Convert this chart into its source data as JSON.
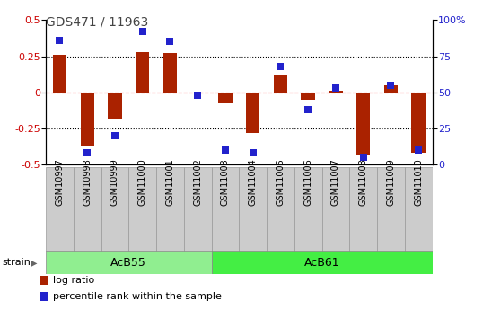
{
  "title": "GDS471 / 11963",
  "samples": [
    "GSM10997",
    "GSM10998",
    "GSM10999",
    "GSM11000",
    "GSM11001",
    "GSM11002",
    "GSM11003",
    "GSM11004",
    "GSM11005",
    "GSM11006",
    "GSM11007",
    "GSM11008",
    "GSM11009",
    "GSM11010"
  ],
  "log_ratio": [
    0.26,
    -0.37,
    -0.18,
    0.28,
    0.27,
    0.0,
    -0.08,
    -0.28,
    0.12,
    -0.05,
    0.01,
    -0.44,
    0.05,
    -0.42
  ],
  "percentile": [
    86,
    8,
    20,
    92,
    85,
    48,
    10,
    8,
    68,
    38,
    53,
    5,
    55,
    10
  ],
  "groups": [
    {
      "label": "AcB55",
      "start": 0,
      "end": 5,
      "color": "#90ee90"
    },
    {
      "label": "AcB61",
      "start": 6,
      "end": 13,
      "color": "#44ee44"
    }
  ],
  "ylim_left": [
    -0.5,
    0.5
  ],
  "ylim_right": [
    0,
    100
  ],
  "yticks_left": [
    -0.5,
    -0.25,
    0.0,
    0.25,
    0.5
  ],
  "yticks_right": [
    0,
    25,
    50,
    75,
    100
  ],
  "bar_color": "#aa2200",
  "dot_color": "#2222cc",
  "bar_width": 0.5,
  "dot_size": 40,
  "label_fontsize": 7,
  "title_fontsize": 10,
  "legend_items": [
    {
      "label": "log ratio",
      "color": "#aa2200"
    },
    {
      "label": "percentile rank within the sample",
      "color": "#2222cc"
    }
  ],
  "strain_label": "strain",
  "tick_box_color": "#cccccc",
  "tick_box_edge": "#999999"
}
